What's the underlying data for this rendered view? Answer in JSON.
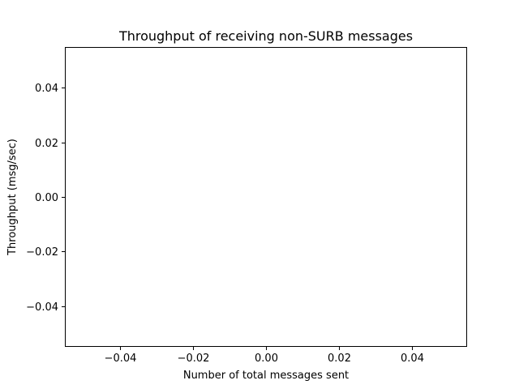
{
  "chart_data": {
    "type": "line",
    "title": "Throughput of receiving non-SURB messages",
    "xlabel": "Number of total messages sent",
    "ylabel": "Throughput (msg/sec)",
    "xlim": [
      -0.055,
      0.055
    ],
    "ylim": [
      -0.055,
      0.055
    ],
    "xticks": [
      -0.04,
      -0.02,
      0.0,
      0.02,
      0.04
    ],
    "xtick_labels": [
      "−0.04",
      "−0.02",
      "0.00",
      "0.02",
      "0.04"
    ],
    "yticks": [
      -0.04,
      -0.02,
      0.0,
      0.02,
      0.04
    ],
    "ytick_labels": [
      "−0.04",
      "−0.02",
      "0.00",
      "0.02",
      "0.04"
    ],
    "grid": false,
    "series": []
  }
}
